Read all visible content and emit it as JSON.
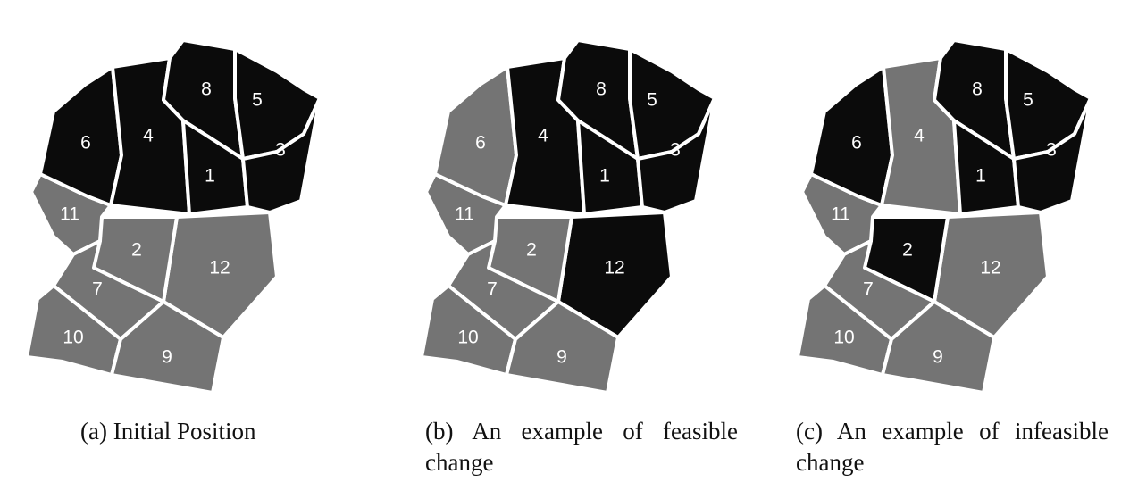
{
  "colors": {
    "dark": "#0b0b0b",
    "light": "#747474",
    "border": "#ffffff"
  },
  "panels": [
    {
      "caption": "(a)  Initial Position",
      "dark_districts": [
        1,
        3,
        4,
        5,
        6,
        8
      ]
    },
    {
      "caption": "(b)  An example of feasible change",
      "dark_districts": [
        1,
        3,
        4,
        5,
        8,
        12
      ]
    },
    {
      "caption": "(c)  An example of infeasible change",
      "dark_districts": [
        1,
        2,
        3,
        5,
        6,
        8
      ]
    }
  ],
  "districts": [
    {
      "id": 1,
      "label": "1"
    },
    {
      "id": 2,
      "label": "2"
    },
    {
      "id": 3,
      "label": "3"
    },
    {
      "id": 4,
      "label": "4"
    },
    {
      "id": 5,
      "label": "5"
    },
    {
      "id": 6,
      "label": "6"
    },
    {
      "id": 7,
      "label": "7"
    },
    {
      "id": 8,
      "label": "8"
    },
    {
      "id": 9,
      "label": "9"
    },
    {
      "id": 10,
      "label": "10"
    },
    {
      "id": 11,
      "label": "11"
    },
    {
      "id": 12,
      "label": "12"
    }
  ]
}
